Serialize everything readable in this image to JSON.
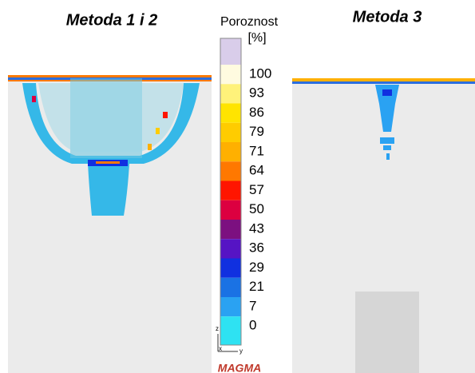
{
  "panels": [
    {
      "title": "Metoda 1 i 2"
    },
    {
      "title": "Metoda 3"
    }
  ],
  "legend": {
    "title": "Poroznost",
    "unit": "[%]",
    "top_color": "#d9cdea",
    "items": [
      {
        "label": "100",
        "color": "#fffbe0"
      },
      {
        "label": "93",
        "color": "#fff27a"
      },
      {
        "label": "86",
        "color": "#ffe400"
      },
      {
        "label": "79",
        "color": "#ffcc00"
      },
      {
        "label": "71",
        "color": "#ffb000"
      },
      {
        "label": "64",
        "color": "#ff7800"
      },
      {
        "label": "57",
        "color": "#ff1500"
      },
      {
        "label": "50",
        "color": "#dc0040"
      },
      {
        "label": "43",
        "color": "#7c1080"
      },
      {
        "label": "36",
        "color": "#5614c4"
      },
      {
        "label": "29",
        "color": "#1030e0"
      },
      {
        "label": "21",
        "color": "#1a72e4"
      },
      {
        "label": "7",
        "color": "#2aa2f2"
      },
      {
        "label": "0",
        "color": "#2ee2f2"
      }
    ]
  },
  "axes": {
    "z": "z",
    "x": "x",
    "y": "y"
  },
  "logo": "MAGMA"
}
